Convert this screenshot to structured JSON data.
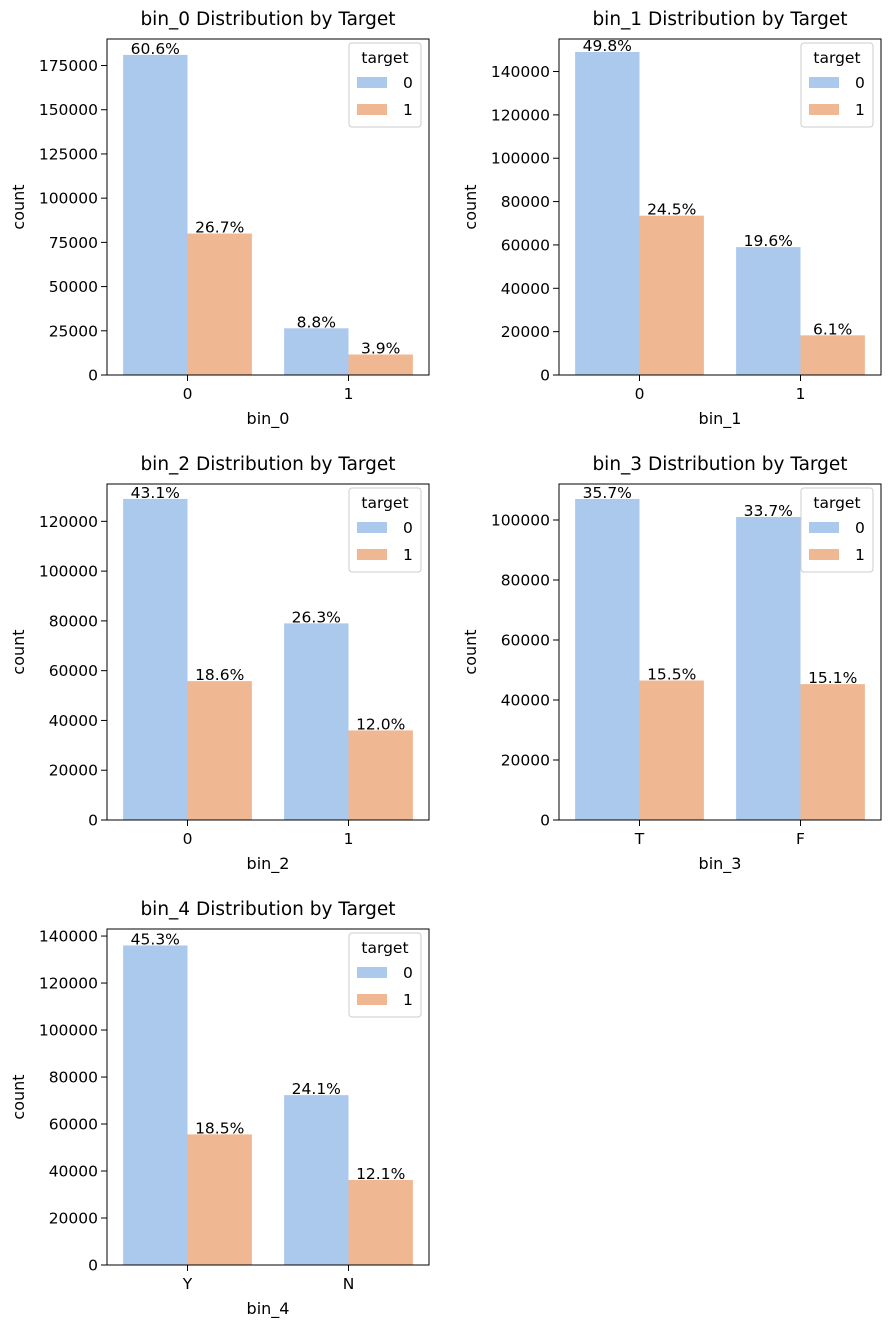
{
  "figure_title": "",
  "colors": {
    "target_0": "#abc9ed",
    "target_1": "#f0b892",
    "frame": "#000000",
    "legend_border": "#cccccc"
  },
  "chart_data": [
    {
      "type": "bar",
      "title": "bin_0 Distribution by Target",
      "xlabel": "bin_0",
      "ylabel": "count",
      "categories": [
        "0",
        "1"
      ],
      "series": [
        {
          "name": "0",
          "values": [
            181000,
            26400
          ]
        },
        {
          "name": "1",
          "values": [
            80000,
            11600
          ]
        }
      ],
      "bar_labels": [
        [
          "60.6%",
          "8.8%"
        ],
        [
          "26.7%",
          "3.9%"
        ]
      ],
      "ylim": [
        0,
        190000
      ],
      "yticks": [
        0,
        25000,
        50000,
        75000,
        100000,
        125000,
        150000,
        175000
      ],
      "legend": {
        "title": "target",
        "position": "top-right"
      }
    },
    {
      "type": "bar",
      "title": "bin_1 Distribution by Target",
      "xlabel": "bin_1",
      "ylabel": "count",
      "categories": [
        "0",
        "1"
      ],
      "series": [
        {
          "name": "0",
          "values": [
            149000,
            59000
          ]
        },
        {
          "name": "1",
          "values": [
            73500,
            18300
          ]
        }
      ],
      "bar_labels": [
        [
          "49.8%",
          "19.6%"
        ],
        [
          "24.5%",
          "6.1%"
        ]
      ],
      "ylim": [
        0,
        155000
      ],
      "yticks": [
        0,
        20000,
        40000,
        60000,
        80000,
        100000,
        120000,
        140000
      ],
      "legend": {
        "title": "target",
        "position": "top-right"
      }
    },
    {
      "type": "bar",
      "title": "bin_2 Distribution by Target",
      "xlabel": "bin_2",
      "ylabel": "count",
      "categories": [
        "0",
        "1"
      ],
      "series": [
        {
          "name": "0",
          "values": [
            129000,
            79000
          ]
        },
        {
          "name": "1",
          "values": [
            55800,
            36000
          ]
        }
      ],
      "bar_labels": [
        [
          "43.1%",
          "26.3%"
        ],
        [
          "18.6%",
          "12.0%"
        ]
      ],
      "ylim": [
        0,
        135000
      ],
      "yticks": [
        0,
        20000,
        40000,
        60000,
        80000,
        100000,
        120000
      ],
      "legend": {
        "title": "target",
        "position": "top-right"
      }
    },
    {
      "type": "bar",
      "title": "bin_3 Distribution by Target",
      "xlabel": "bin_3",
      "ylabel": "count",
      "categories": [
        "T",
        "F"
      ],
      "series": [
        {
          "name": "0",
          "values": [
            107000,
            101000
          ]
        },
        {
          "name": "1",
          "values": [
            46500,
            45300
          ]
        }
      ],
      "bar_labels": [
        [
          "35.7%",
          "33.7%"
        ],
        [
          "15.5%",
          "15.1%"
        ]
      ],
      "ylim": [
        0,
        112000
      ],
      "yticks": [
        0,
        20000,
        40000,
        60000,
        80000,
        100000
      ],
      "legend": {
        "title": "target",
        "position": "top-right"
      }
    },
    {
      "type": "bar",
      "title": "bin_4 Distribution by Target",
      "xlabel": "bin_4",
      "ylabel": "count",
      "categories": [
        "Y",
        "N"
      ],
      "series": [
        {
          "name": "0",
          "values": [
            136000,
            72300
          ]
        },
        {
          "name": "1",
          "values": [
            55600,
            36200
          ]
        }
      ],
      "bar_labels": [
        [
          "45.3%",
          "24.1%"
        ],
        [
          "18.5%",
          "12.1%"
        ]
      ],
      "ylim": [
        0,
        143000
      ],
      "yticks": [
        0,
        20000,
        40000,
        60000,
        80000,
        100000,
        120000,
        140000
      ],
      "legend": {
        "title": "target",
        "position": "top-right"
      }
    }
  ]
}
